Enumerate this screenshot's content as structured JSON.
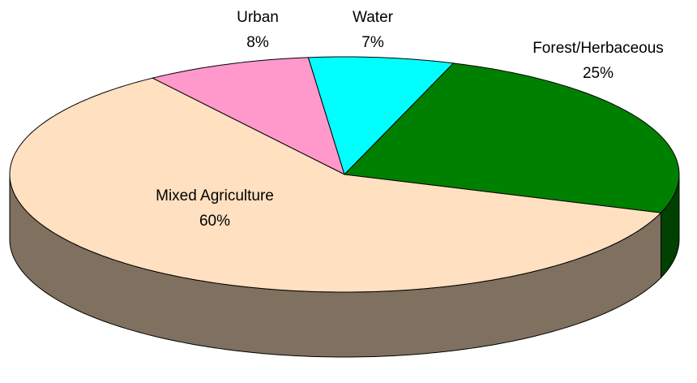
{
  "chart_data": {
    "type": "pie3d",
    "categories": [
      "Urban",
      "Water",
      "Forest/Herbaceous",
      "Mixed Agriculture"
    ],
    "values": [
      8,
      7,
      25,
      60
    ],
    "value_labels": [
      "8%",
      "7%",
      "25%",
      "60%"
    ],
    "colors": [
      "#ff99cc",
      "#00ffff",
      "#008000",
      "#ffe0c0"
    ]
  }
}
